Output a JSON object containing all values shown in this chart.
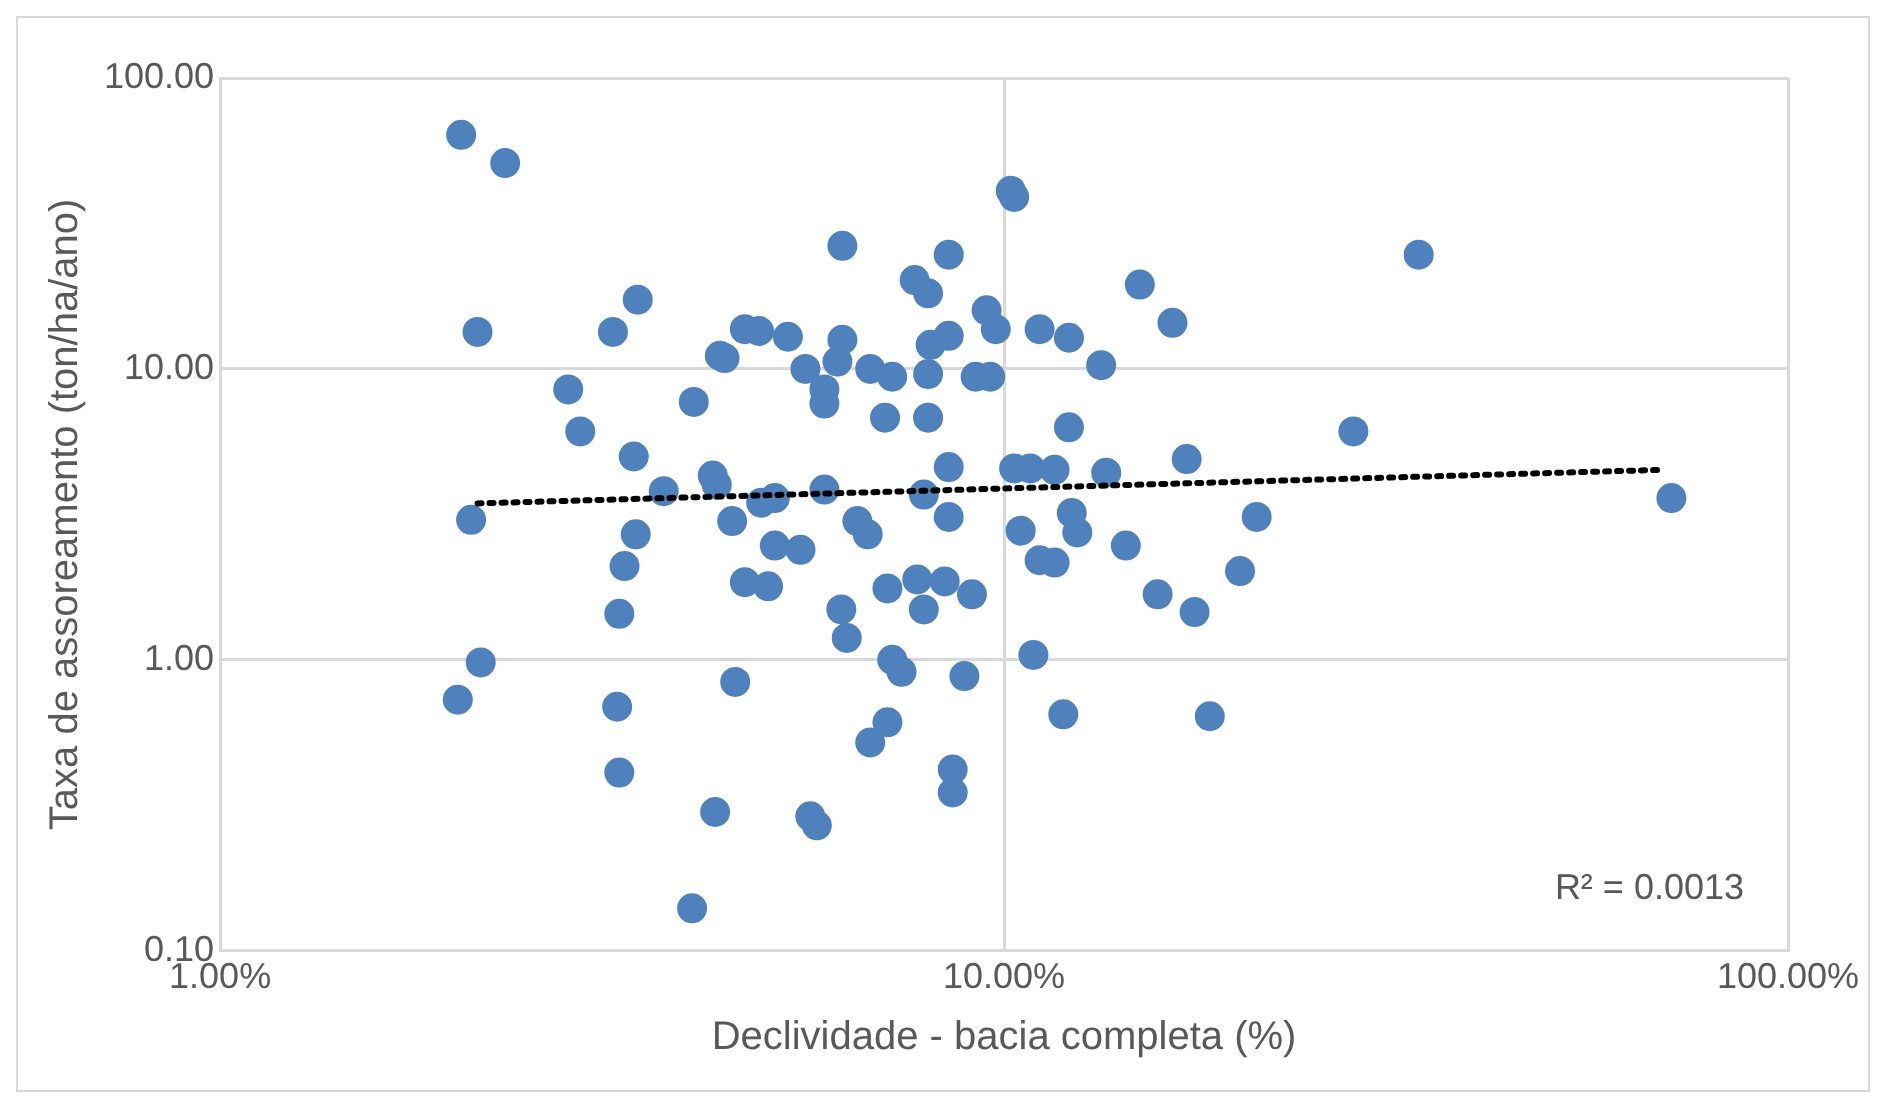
{
  "chart_data": {
    "type": "scatter",
    "xlabel": "Declividade - bacia completa (%)",
    "ylabel": "Taxa de assoreamento (ton/ha/ano)",
    "log": "xy",
    "grid": true,
    "legend": false,
    "marker": "circle",
    "xlim": [
      1,
      100
    ],
    "ylim": [
      0.1,
      100
    ],
    "xticks": [
      {
        "value": 1,
        "label": "1.00%"
      },
      {
        "value": 10,
        "label": "10.00%"
      },
      {
        "value": 100,
        "label": "100.00%"
      }
    ],
    "yticks": [
      {
        "value": 0.1,
        "label": "0.10"
      },
      {
        "value": 1,
        "label": "1.00"
      },
      {
        "value": 10,
        "label": "10.00"
      },
      {
        "value": 100,
        "label": "100.00"
      }
    ],
    "annotations": [
      "R² = 0.0013"
    ],
    "series": [
      {
        "color": "#4f81bd",
        "x": [
          2.03,
          2.31,
          2.13,
          3.41,
          3.17,
          2.09,
          2.15,
          2.01,
          2.78,
          2.88,
          3.37,
          3.68,
          3.39,
          3.28,
          3.23,
          3.21,
          3.23,
          4.0,
          4.28,
          4.02,
          4.34,
          4.67,
          4.87,
          4.4,
          4.25,
          4.3,
          4.5,
          4.67,
          4.54,
          4.9,
          5.1,
          5.1,
          5.0,
          5.3,
          6.22,
          8.5,
          7.69,
          8.0,
          10.2,
          10.3,
          14.9,
          16.4,
          9.5,
          9.76,
          11.1,
          12.1,
          13.3,
          6.22,
          6.13,
          8.5,
          8.06,
          5.58,
          6.75,
          7.2,
          8.0,
          9.2,
          9.6,
          5.9,
          5.9,
          7.05,
          8.0,
          12.1,
          8.5,
          10.3,
          10.8,
          11.6,
          13.5,
          17.1,
          5.9,
          7.9,
          6.5,
          6.7,
          8.5,
          10.5,
          12.2,
          12.4,
          5.5,
          14.3,
          11.1,
          11.6,
          7.1,
          7.75,
          8.4,
          9.1,
          7.9,
          6.2,
          6.3,
          15.7,
          17.5,
          20.0,
          21.0,
          7.2,
          7.4,
          8.9,
          10.9,
          11.9,
          18.3,
          7.1,
          6.75,
          8.6,
          8.6,
          5.66,
          5.77,
          33.8,
          27.9,
          71.0
        ],
        "values": [
          63.8,
          51,
          13.4,
          17.3,
          13.4,
          3.03,
          0.98,
          0.73,
          8.5,
          6.1,
          5.0,
          3.8,
          2.7,
          2.1,
          1.44,
          0.69,
          0.41,
          0.14,
          0.3,
          7.7,
          11.1,
          13.7,
          13.5,
          10.9,
          4.3,
          4.0,
          3.0,
          1.85,
          0.84,
          3.47,
          3.6,
          2.47,
          1.79,
          12.9,
          26.5,
          24.7,
          20.2,
          18.2,
          41,
          39,
          19.5,
          14.4,
          15.9,
          13.7,
          13.7,
          12.8,
          10.3,
          12.6,
          10.6,
          13.0,
          12.1,
          10.0,
          10.0,
          9.4,
          9.6,
          9.4,
          9.4,
          8.5,
          7.6,
          6.8,
          6.8,
          6.3,
          4.6,
          4.55,
          4.55,
          4.5,
          4.4,
          4.9,
          3.85,
          3.7,
          3.0,
          2.7,
          3.1,
          2.78,
          3.2,
          2.74,
          2.39,
          2.47,
          2.2,
          2.16,
          1.76,
          1.89,
          1.86,
          1.68,
          1.49,
          1.49,
          1.19,
          1.68,
          1.46,
          2.02,
          3.1,
          1.0,
          0.91,
          0.88,
          1.04,
          0.65,
          0.64,
          0.61,
          0.52,
          0.42,
          0.35,
          0.29,
          0.27,
          24.7,
          6.1,
          3.6
        ]
      },
      {
        "type": "line",
        "color": "#000000",
        "line_style": "dotted",
        "marker": "none",
        "x": [
          2.13,
          69
        ],
        "values": [
          3.45,
          4.5
        ]
      }
    ]
  }
}
